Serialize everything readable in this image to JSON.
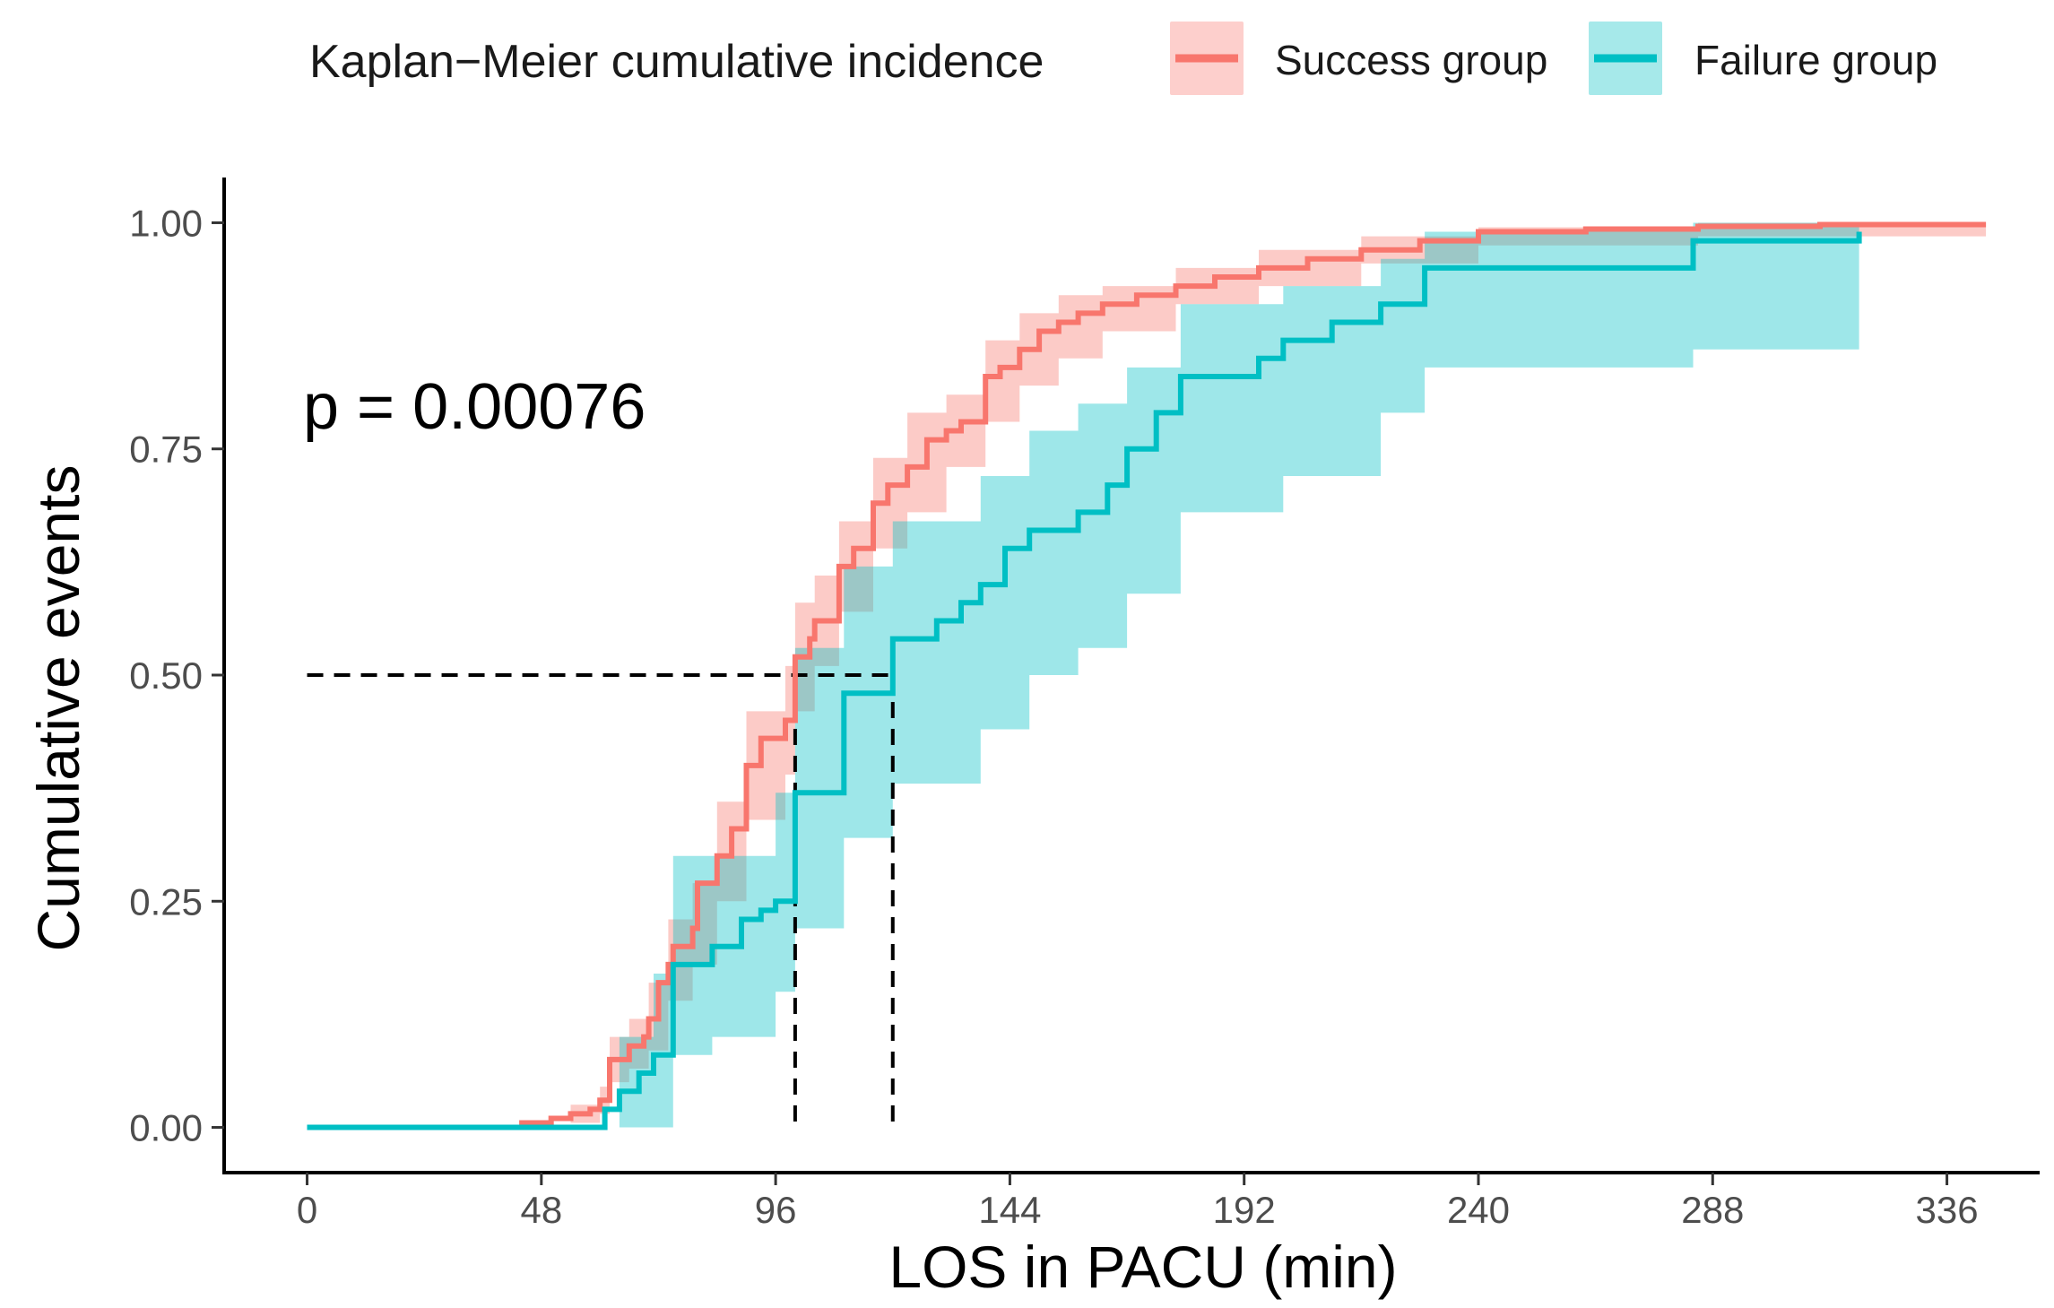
{
  "chart_data": {
    "type": "line",
    "subtype": "kaplan-meier step curve with confidence bands",
    "legend": {
      "title": "Kaplan−Meier cumulative incidence",
      "position": "top",
      "entries": [
        {
          "name": "Success group",
          "color": "#f8766d",
          "band_color": "#f8766d"
        },
        {
          "name": "Failure group",
          "color": "#00bfc4",
          "band_color": "#00bfc4"
        }
      ]
    },
    "annotation": "p = 0.00076",
    "xlabel": "LOS in PACU (min)",
    "ylabel": "Cumulative events",
    "xlim": [
      -17,
      355
    ],
    "ylim": [
      -0.05,
      1.05
    ],
    "x_ticks": [
      0,
      48,
      96,
      144,
      192,
      240,
      288,
      336
    ],
    "x_tick_labels": [
      "0",
      "48",
      "96",
      "144",
      "192",
      "240",
      "288",
      "336"
    ],
    "y_ticks": [
      0,
      0.25,
      0.5,
      0.75,
      1.0
    ],
    "y_tick_labels": [
      "0.00",
      "0.25",
      "0.50",
      "0.75",
      "1.00"
    ],
    "grid": false,
    "median_lines": {
      "y": 0.5,
      "x_start": 0,
      "x_values": [
        100,
        120
      ],
      "color": "#000000"
    },
    "series": [
      {
        "name": "Success group",
        "color": "#f8766d",
        "steps": [
          [
            0,
            0.0
          ],
          [
            40,
            0.0
          ],
          [
            44,
            0.005
          ],
          [
            50,
            0.01
          ],
          [
            54,
            0.015
          ],
          [
            58,
            0.02
          ],
          [
            60,
            0.03
          ],
          [
            60,
            0.03
          ],
          [
            62,
            0.075
          ],
          [
            65,
            0.075
          ],
          [
            66,
            0.09
          ],
          [
            69,
            0.1
          ],
          [
            70,
            0.12
          ],
          [
            72,
            0.16
          ],
          [
            74,
            0.18
          ],
          [
            75,
            0.2
          ],
          [
            79,
            0.22
          ],
          [
            80,
            0.27
          ],
          [
            84,
            0.3
          ],
          [
            87,
            0.33
          ],
          [
            90,
            0.4
          ],
          [
            93,
            0.43
          ],
          [
            98,
            0.45
          ],
          [
            100,
            0.52
          ],
          [
            103,
            0.54
          ],
          [
            104,
            0.56
          ],
          [
            109,
            0.62
          ],
          [
            112,
            0.64
          ],
          [
            116,
            0.69
          ],
          [
            119,
            0.71
          ],
          [
            123,
            0.73
          ],
          [
            127,
            0.76
          ],
          [
            131,
            0.77
          ],
          [
            134,
            0.78
          ],
          [
            139,
            0.83
          ],
          [
            142,
            0.84
          ],
          [
            146,
            0.86
          ],
          [
            150,
            0.88
          ],
          [
            154,
            0.89
          ],
          [
            158,
            0.9
          ],
          [
            163,
            0.91
          ],
          [
            170,
            0.92
          ],
          [
            178,
            0.93
          ],
          [
            186,
            0.94
          ],
          [
            195,
            0.95
          ],
          [
            205,
            0.96
          ],
          [
            216,
            0.97
          ],
          [
            228,
            0.98
          ],
          [
            240,
            0.99
          ],
          [
            262,
            0.993
          ],
          [
            285,
            0.996
          ],
          [
            310,
            0.998
          ],
          [
            344,
            0.998
          ]
        ],
        "band_upper": [
          [
            0,
            0.0
          ],
          [
            40,
            0.003
          ],
          [
            54,
            0.025
          ],
          [
            60,
            0.045
          ],
          [
            62,
            0.1
          ],
          [
            66,
            0.12
          ],
          [
            70,
            0.16
          ],
          [
            74,
            0.23
          ],
          [
            79,
            0.27
          ],
          [
            84,
            0.36
          ],
          [
            90,
            0.46
          ],
          [
            98,
            0.51
          ],
          [
            100,
            0.58
          ],
          [
            104,
            0.61
          ],
          [
            109,
            0.67
          ],
          [
            116,
            0.74
          ],
          [
            123,
            0.79
          ],
          [
            131,
            0.81
          ],
          [
            139,
            0.87
          ],
          [
            146,
            0.9
          ],
          [
            154,
            0.92
          ],
          [
            163,
            0.93
          ],
          [
            178,
            0.95
          ],
          [
            195,
            0.97
          ],
          [
            216,
            0.985
          ],
          [
            240,
            0.995
          ],
          [
            285,
            1.0
          ],
          [
            344,
            1.0
          ]
        ],
        "band_lower": [
          [
            0,
            0.0
          ],
          [
            40,
            0.0
          ],
          [
            54,
            0.005
          ],
          [
            60,
            0.015
          ],
          [
            62,
            0.05
          ],
          [
            66,
            0.065
          ],
          [
            70,
            0.085
          ],
          [
            74,
            0.14
          ],
          [
            79,
            0.18
          ],
          [
            84,
            0.25
          ],
          [
            90,
            0.34
          ],
          [
            98,
            0.39
          ],
          [
            100,
            0.46
          ],
          [
            104,
            0.51
          ],
          [
            109,
            0.57
          ],
          [
            116,
            0.64
          ],
          [
            123,
            0.68
          ],
          [
            131,
            0.73
          ],
          [
            139,
            0.78
          ],
          [
            146,
            0.82
          ],
          [
            154,
            0.85
          ],
          [
            163,
            0.88
          ],
          [
            178,
            0.91
          ],
          [
            195,
            0.93
          ],
          [
            216,
            0.955
          ],
          [
            240,
            0.975
          ],
          [
            285,
            0.985
          ],
          [
            344,
            0.99
          ]
        ]
      },
      {
        "name": "Failure group",
        "color": "#00bfc4",
        "steps": [
          [
            0,
            0.0
          ],
          [
            60,
            0.0
          ],
          [
            61,
            0.02
          ],
          [
            64,
            0.04
          ],
          [
            68,
            0.06
          ],
          [
            71,
            0.08
          ],
          [
            75,
            0.18
          ],
          [
            83,
            0.2
          ],
          [
            89,
            0.23
          ],
          [
            93,
            0.24
          ],
          [
            96,
            0.25
          ],
          [
            100,
            0.37
          ],
          [
            110,
            0.48
          ],
          [
            120,
            0.54
          ],
          [
            129,
            0.56
          ],
          [
            134,
            0.58
          ],
          [
            138,
            0.6
          ],
          [
            143,
            0.64
          ],
          [
            148,
            0.66
          ],
          [
            158,
            0.68
          ],
          [
            164,
            0.71
          ],
          [
            168,
            0.75
          ],
          [
            174,
            0.79
          ],
          [
            179,
            0.83
          ],
          [
            195,
            0.85
          ],
          [
            200,
            0.87
          ],
          [
            210,
            0.89
          ],
          [
            220,
            0.91
          ],
          [
            229,
            0.95
          ],
          [
            284,
            0.98
          ],
          [
            318,
            0.99
          ]
        ],
        "band_upper": [
          [
            0,
            0.0
          ],
          [
            60,
            0.0
          ],
          [
            64,
            0.1
          ],
          [
            71,
            0.17
          ],
          [
            75,
            0.3
          ],
          [
            83,
            0.3
          ],
          [
            96,
            0.37
          ],
          [
            100,
            0.53
          ],
          [
            110,
            0.62
          ],
          [
            120,
            0.67
          ],
          [
            138,
            0.72
          ],
          [
            148,
            0.77
          ],
          [
            158,
            0.8
          ],
          [
            168,
            0.84
          ],
          [
            179,
            0.91
          ],
          [
            200,
            0.93
          ],
          [
            220,
            0.96
          ],
          [
            229,
            0.99
          ],
          [
            284,
            1.0
          ],
          [
            318,
            1.0
          ]
        ],
        "band_lower": [
          [
            0,
            0.0
          ],
          [
            60,
            0.0
          ],
          [
            64,
            0.0
          ],
          [
            71,
            0.0
          ],
          [
            75,
            0.08
          ],
          [
            83,
            0.1
          ],
          [
            96,
            0.15
          ],
          [
            100,
            0.22
          ],
          [
            110,
            0.32
          ],
          [
            120,
            0.38
          ],
          [
            138,
            0.44
          ],
          [
            148,
            0.5
          ],
          [
            158,
            0.53
          ],
          [
            168,
            0.59
          ],
          [
            179,
            0.68
          ],
          [
            200,
            0.72
          ],
          [
            220,
            0.79
          ],
          [
            229,
            0.84
          ],
          [
            284,
            0.86
          ],
          [
            318,
            0.86
          ]
        ]
      }
    ]
  }
}
